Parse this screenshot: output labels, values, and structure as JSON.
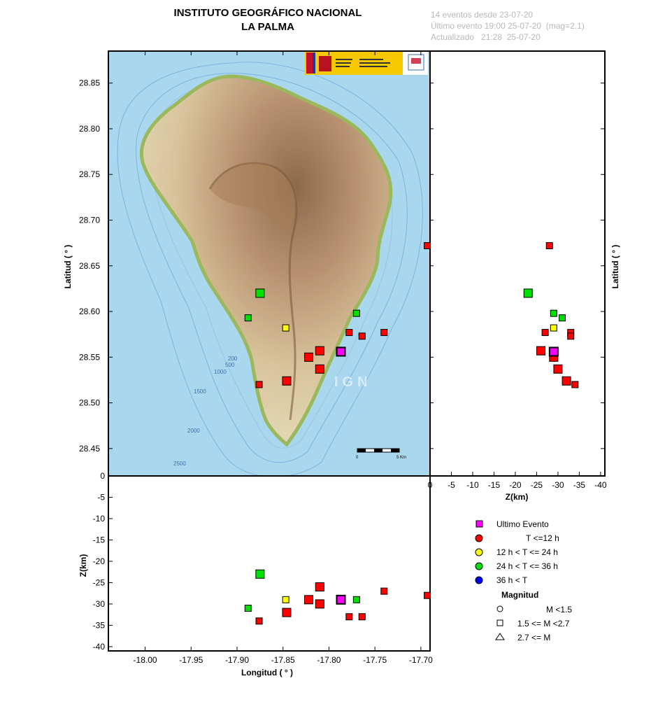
{
  "header": {
    "title_line1": "INSTITUTO GEOGRÁFICO NACIONAL",
    "title_line2": "LA PALMA",
    "info_events": "14 eventos desde 23-07-20",
    "info_last": "Último evento 19:00 25-07-20  (mag=2.1)",
    "info_updated": "Actualizado   21:28  25-07-20"
  },
  "map": {
    "watermark": "IGN",
    "scale_labels": [
      "0",
      "5 Km"
    ],
    "bathymetry_labels": [
      "200",
      "500",
      "1000",
      "1500",
      "2000",
      "2500"
    ],
    "colors": {
      "sea": "#a9d7ee",
      "land": "#d9c9a5",
      "ridge": "#a77e58",
      "coast": "#9bb85c"
    }
  },
  "axes": {
    "lat_label": "Latitud ( ° )",
    "lon_label": "Longitud ( ° )",
    "z_label": "Z(km)",
    "lat_ticks": [
      "28.85",
      "28.80",
      "28.75",
      "28.70",
      "28.65",
      "28.60",
      "28.55",
      "28.50",
      "28.45"
    ],
    "lon_ticks": [
      "-18.00",
      "-17.95",
      "-17.90",
      "-17.85",
      "-17.80",
      "-17.75",
      "-17.70"
    ],
    "z_ticks_vertical": [
      "0",
      "-5",
      "-10",
      "-15",
      "-20",
      "-25",
      "-30",
      "-35",
      "-40"
    ],
    "z_ticks_horizontal": [
      "0",
      "-5",
      "-10",
      "-15",
      "-20",
      "-25",
      "-30",
      "-35",
      "-40"
    ]
  },
  "legend": {
    "items": [
      {
        "label": "Ultimo Evento",
        "symbol": "square",
        "color": "#ff00ff"
      },
      {
        "label": "T <=12 h",
        "symbol": "circle",
        "color": "#ff0000"
      },
      {
        "label": "12 h  < T <= 24 h",
        "symbol": "circle",
        "color": "#ffff00"
      },
      {
        "label": "24 h  < T <= 36 h",
        "symbol": "circle",
        "color": "#00e000"
      },
      {
        "label": "36 h <  T",
        "symbol": "circle",
        "color": "#0000ff"
      }
    ],
    "magnitude_title": "Magnitud",
    "magnitude_items": [
      {
        "label": "M <1.5",
        "symbol": "circle"
      },
      {
        "label": "1.5 <= M <2.7",
        "symbol": "square"
      },
      {
        "label": "2.7 <= M",
        "symbol": "triangle"
      }
    ]
  },
  "chart_data": {
    "type": "scatter",
    "axes_ranges": {
      "lon": [
        -18.04,
        -17.69
      ],
      "lat": [
        28.42,
        28.885
      ],
      "z": [
        0,
        -41
      ]
    },
    "colors": {
      "recent": "#ff0000",
      "12-24h": "#ffff00",
      "24-36h": "#00e000",
      "last": "#ff00ff"
    },
    "events": [
      {
        "lon": -17.875,
        "lat": 28.62,
        "z": -23,
        "cat": "24-36h",
        "size": "large"
      },
      {
        "lon": -17.888,
        "lat": 28.593,
        "z": -31,
        "cat": "24-36h",
        "size": "small"
      },
      {
        "lon": -17.77,
        "lat": 28.598,
        "z": -29,
        "cat": "24-36h",
        "size": "small"
      },
      {
        "lon": -17.847,
        "lat": 28.582,
        "z": -29,
        "cat": "12-24h",
        "size": "small"
      },
      {
        "lon": -17.778,
        "lat": 28.577,
        "z": -33,
        "cat": "recent",
        "size": "small"
      },
      {
        "lon": -17.764,
        "lat": 28.573,
        "z": -33,
        "cat": "recent",
        "size": "small"
      },
      {
        "lon": -17.74,
        "lat": 28.577,
        "z": -27,
        "cat": "recent",
        "size": "small"
      },
      {
        "lon": -17.81,
        "lat": 28.557,
        "z": -26,
        "cat": "recent",
        "size": "large"
      },
      {
        "lon": -17.822,
        "lat": 28.55,
        "z": -29,
        "cat": "recent",
        "size": "large"
      },
      {
        "lon": -17.81,
        "lat": 28.537,
        "z": -30,
        "cat": "recent",
        "size": "large"
      },
      {
        "lon": -17.846,
        "lat": 28.524,
        "z": -32,
        "cat": "recent",
        "size": "large"
      },
      {
        "lon": -17.876,
        "lat": 28.52,
        "z": -34,
        "cat": "recent",
        "size": "small"
      },
      {
        "lon": -17.693,
        "lat": 28.672,
        "z": -28,
        "cat": "recent",
        "size": "small"
      },
      {
        "lon": -17.787,
        "lat": 28.556,
        "z": -29,
        "cat": "last",
        "size": "large"
      }
    ]
  }
}
